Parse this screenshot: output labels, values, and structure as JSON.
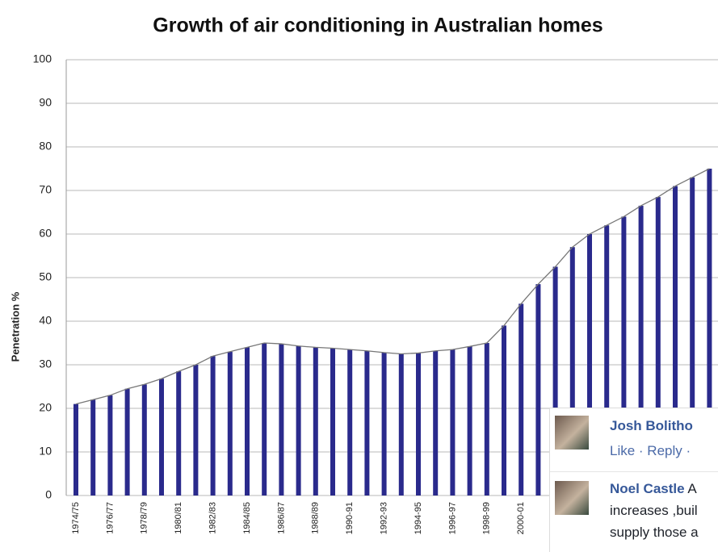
{
  "chart_data": {
    "type": "bar",
    "title": "Growth of air conditioning in Australian homes",
    "y_label": "Penetration %",
    "categories": [
      "1974/75",
      null,
      "1976/77",
      null,
      "1978/79",
      null,
      "1980/81",
      null,
      "1982/83",
      null,
      "1984/85",
      null,
      "1986/87",
      null,
      "1988/89",
      null,
      "1990-91",
      null,
      "1992-93",
      null,
      "1994-95",
      null,
      "1996-97",
      null,
      "1998-99",
      null,
      "2000-01",
      null,
      null,
      null,
      null,
      null,
      null,
      null,
      null,
      null,
      null,
      null
    ],
    "values": [
      21,
      22,
      23,
      24.5,
      25.5,
      26.8,
      28.5,
      30,
      32,
      33,
      34,
      35,
      34.8,
      34.3,
      34,
      33.8,
      33.5,
      33.2,
      32.8,
      32.5,
      32.7,
      33.2,
      33.5,
      34.2,
      35,
      39,
      44,
      48.5,
      52.5,
      57,
      60,
      62,
      64,
      66.5,
      68.5,
      71,
      73,
      75
    ],
    "color": "#2a2a8c",
    "ylim": [
      0,
      100
    ],
    "yticks": [
      0,
      10,
      20,
      30,
      40,
      50,
      60,
      70,
      80,
      90,
      100
    ],
    "grid": true
  },
  "comments": [
    {
      "name": "Josh Bolitho",
      "actions": "Like · Reply ·"
    },
    {
      "name": "Noel Castle",
      "lines": [
        "A",
        "increases ,buil",
        "supply those a"
      ]
    }
  ]
}
